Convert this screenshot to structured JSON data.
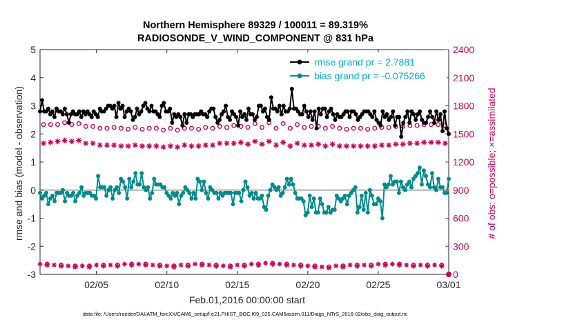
{
  "chart_data": {
    "type": "line",
    "title_line1": "Northern Hemisphere 89329 / 100011 = 89.319%",
    "title_line2": "RADIOSONDE_V_WIND_COMPONENT @ 831 hPa",
    "ylabel_left": "rmse and bias (model - observation)",
    "ylabel_right": "# of obs: o=possible; ×=assimilated",
    "xlabel": "Feb.01,2016 00:00:00 start",
    "footer": "data file: /Users/raeder/DAI/ATM_forcXX/CAM6_setup/f.e21.FHIST_BGC.f09_025.CAM6assim.011/Diags_NTrS_2016-02/obs_diag_output.nc",
    "x_range_days": [
      1,
      30
    ],
    "ylim_left": [
      -3,
      5
    ],
    "ylim_right": [
      0,
      2400
    ],
    "x_ticks": [
      {
        "label": "02/05",
        "day": 5
      },
      {
        "label": "02/10",
        "day": 10
      },
      {
        "label": "02/15",
        "day": 15
      },
      {
        "label": "02/20",
        "day": 20
      },
      {
        "label": "02/25",
        "day": 25
      },
      {
        "label": "03/01",
        "day": 30
      }
    ],
    "y_ticks_left": [
      "-3",
      "-2",
      "-1",
      "0",
      "1",
      "2",
      "3",
      "4",
      "5"
    ],
    "y_ticks_right": [
      "0",
      "300",
      "600",
      "900",
      "1200",
      "1500",
      "1800",
      "2100",
      "2400"
    ],
    "legend": [
      {
        "label": "rmse grand pr = 2.7881",
        "color": "#000000"
      },
      {
        "label": "bias grand pr = -0.075266",
        "color": "#008b8b"
      }
    ],
    "colors": {
      "rmse": "#000000",
      "bias": "#008b8b",
      "obs": "#cc0055",
      "zero_line": "#b0b0b0",
      "right_axis": "#cc0055",
      "legend_text": "#00aadd"
    },
    "series": {
      "rmse": [
        2.8,
        3.2,
        2.8,
        2.8,
        2.9,
        2.7,
        2.8,
        2.6,
        2.9,
        2.8,
        2.8,
        2.7,
        2.9,
        2.7,
        2.4,
        2.7,
        2.8,
        2.7,
        2.7,
        2.8,
        2.6,
        2.8,
        2.7,
        2.8,
        2.7,
        2.6,
        2.8,
        2.7,
        2.6,
        2.9,
        2.8,
        2.8,
        2.9,
        3.0,
        3.0,
        2.9,
        3.0,
        2.6,
        3.1,
        2.9,
        3.0,
        2.6,
        2.8,
        2.9,
        2.8,
        2.5,
        2.6,
        2.9,
        2.7,
        2.8,
        3.0,
        3.1,
        2.9,
        2.8,
        3.0,
        2.8,
        2.8,
        2.7,
        2.6,
        3.0,
        3.1,
        2.8,
        2.8,
        2.9,
        2.4,
        2.7,
        2.6,
        2.7,
        2.6,
        2.3,
        2.7,
        2.4,
        2.7,
        2.7,
        2.6,
        2.7,
        2.7,
        2.7,
        2.8,
        2.7,
        2.7,
        2.6,
        2.8,
        2.9,
        2.9,
        2.6,
        2.4,
        2.5,
        2.7,
        2.8,
        3.0,
        2.6,
        2.5,
        2.8,
        2.7,
        2.6,
        2.3,
        2.8,
        2.6,
        2.7,
        2.5,
        2.9,
        2.7,
        2.7,
        2.5,
        2.6,
        3.0,
        3.0,
        2.8,
        2.9,
        2.6,
        2.5,
        3.3,
        2.9,
        2.9,
        2.8,
        3.0,
        2.7,
        3.0,
        2.8,
        2.8,
        2.9,
        3.6,
        2.9,
        2.9,
        2.8,
        2.7,
        2.7,
        3.0,
        2.8,
        2.6,
        2.8,
        2.5,
        2.8,
        2.2,
        2.9,
        2.7,
        2.9,
        2.9,
        2.6,
        2.8,
        2.9,
        2.7,
        2.5,
        2.7,
        2.6,
        2.6,
        2.7,
        2.8,
        2.8,
        2.6,
        2.8,
        2.8,
        2.7,
        2.5,
        2.6,
        2.7,
        2.8,
        2.8,
        2.8,
        2.7,
        2.6,
        2.8,
        2.5,
        2.4,
        2.3,
        2.8,
        2.6,
        2.7,
        2.5,
        2.6,
        2.8,
        2.3,
        2.6,
        2.6,
        1.9,
        2.4,
        2.6,
        2.8,
        2.4,
        2.8,
        2.7,
        2.5,
        2.7,
        2.8,
        2.5,
        2.4,
        2.4,
        2.6,
        2.8,
        2.6,
        2.4,
        2.8,
        2.5,
        2.7,
        2.1,
        2.8,
        2.2,
        2.0
      ],
      "bias": [
        -0.1,
        -0.3,
        -0.2,
        -0.1,
        -0.5,
        -0.3,
        -0.2,
        -0.4,
        -0.1,
        -0.1,
        -0.1,
        0.0,
        -0.4,
        -0.1,
        -0.2,
        -0.2,
        -0.1,
        -0.4,
        -0.2,
        -0.1,
        0.1,
        -0.2,
        -0.1,
        -0.1,
        -0.1,
        -0.2,
        -0.2,
        -0.3,
        0.5,
        0.1,
        0.1,
        0.1,
        -0.2,
        0.0,
        0.1,
        -0.3,
        0.0,
        0.1,
        -0.1,
        0.4,
        0.3,
        0.1,
        -0.3,
        0.4,
        0.1,
        0.3,
        0.6,
        0.2,
        0.2,
        0.6,
        0.1,
        0.0,
        0.1,
        -0.3,
        -0.1,
        0.4,
        0.2,
        0.2,
        0.2,
        0.1,
        0.1,
        -0.1,
        -0.2,
        -0.3,
        -0.1,
        -0.2,
        -0.1,
        -0.5,
        -0.2,
        -0.1,
        0.1,
        0.0,
        -0.1,
        -0.3,
        -0.1,
        -0.3,
        0.4,
        0.3,
        0.0,
        0.3,
        -0.1,
        -0.3,
        0.1,
        0.0,
        -0.1,
        -0.1,
        -0.3,
        -0.1,
        -0.2,
        -0.1,
        -0.1,
        -0.1,
        -0.1,
        -0.5,
        -0.1,
        -0.1,
        -0.1,
        -0.4,
        0.0,
        0.3,
        0.1,
        -0.2,
        -0.1,
        -0.3,
        -0.1,
        -0.3,
        -0.3,
        -0.2,
        -0.6,
        -0.7,
        -0.2,
        0.0,
        0.2,
        0.1,
        0.0,
        0.1,
        -0.2,
        -0.1,
        0.1,
        0.4,
        0.2,
        0.4,
        0.2,
        -0.1,
        -0.3,
        -0.3,
        -0.3,
        -0.4,
        -0.9,
        -0.8,
        -0.2,
        -0.6,
        -0.3,
        -0.8,
        -0.8,
        -0.3,
        -0.5,
        -0.8,
        -0.8,
        -0.6,
        -0.8,
        -0.7,
        -0.7,
        -0.2,
        -0.3,
        -0.4,
        -0.3,
        -0.2,
        -0.5,
        -0.2,
        -0.1,
        0.0,
        0.1,
        -0.8,
        -0.6,
        -0.2,
        -0.7,
        -0.1,
        -0.8,
        0.0,
        -0.2,
        -0.5,
        -0.5,
        -0.3,
        -0.4,
        -1.0,
        0.2,
        0.1,
        0.2,
        0.5,
        0.2,
        0.3,
        0.3,
        -0.1,
        0.3,
        0.1,
        0.0,
        0.2,
        0.3,
        0.1,
        0.4,
        0.5,
        0.6,
        0.8,
        0.2,
        0.7,
        0.5,
        0.2,
        0.1,
        0.6,
        0.1,
        0.0,
        0.4,
        0.1,
        0.1,
        -0.1,
        -0.1,
        0.4
      ],
      "obs_possible_day": [
        1600,
        1600,
        1600,
        1580,
        1560,
        1570,
        1550,
        1550,
        1560,
        1560,
        1560,
        1550,
        1560,
        1570,
        1580,
        1610,
        1620,
        1610,
        1600,
        1580,
        1560,
        1560,
        1560,
        1550,
        1570,
        1580,
        1590,
        1600,
        1600
      ],
      "obs_possible_night": [
        1600,
        1620,
        1610,
        1580,
        1560,
        1560,
        1570,
        1560,
        1540,
        1540,
        1560,
        1570,
        1580,
        1590,
        1570,
        1570,
        1560,
        1560,
        1570,
        1580,
        1580,
        1550,
        1560,
        1560,
        1570,
        1580,
        1590,
        1600,
        1590
      ],
      "obs_assim_day": [
        1400,
        1420,
        1420,
        1400,
        1380,
        1380,
        1370,
        1370,
        1370,
        1370,
        1380,
        1370,
        1380,
        1400,
        1410,
        1420,
        1420,
        1410,
        1400,
        1380,
        1370,
        1370,
        1370,
        1370,
        1380,
        1390,
        1400,
        1410,
        1410
      ],
      "obs_assim_night": [
        1410,
        1430,
        1430,
        1400,
        1380,
        1370,
        1380,
        1370,
        1360,
        1360,
        1370,
        1380,
        1400,
        1400,
        1390,
        1390,
        1380,
        1370,
        1380,
        1390,
        1390,
        1370,
        1370,
        1370,
        1380,
        1390,
        1400,
        1410,
        1400
      ],
      "obs_bottom_possible": [
        110,
        100,
        90,
        90,
        100,
        100,
        110,
        110,
        100,
        90,
        100,
        110,
        100,
        90,
        100,
        110,
        120,
        110,
        100,
        90,
        80,
        90,
        100,
        100,
        110,
        110,
        100,
        100,
        100
      ],
      "obs_bottom_assimilated": [
        100,
        90,
        80,
        80,
        90,
        90,
        100,
        100,
        90,
        80,
        90,
        100,
        90,
        80,
        90,
        100,
        110,
        100,
        90,
        80,
        70,
        80,
        90,
        90,
        100,
        100,
        90,
        90,
        90
      ]
    }
  }
}
